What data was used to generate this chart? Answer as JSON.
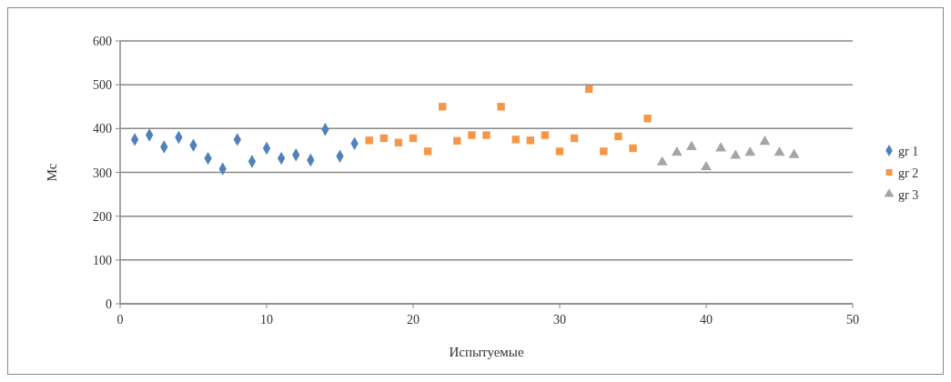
{
  "chart_data": {
    "type": "scatter",
    "xlabel": "Испытуемые",
    "ylabel": "Мс",
    "xlim": [
      0,
      50
    ],
    "xticks": [
      0,
      10,
      20,
      30,
      40,
      50
    ],
    "ylim": [
      0,
      600
    ],
    "yticks": [
      0,
      100,
      200,
      300,
      400,
      500,
      600
    ],
    "grid": "y",
    "legend": "right",
    "series": [
      {
        "name": "gr 1",
        "color": "#4f81bd",
        "marker": "diamond",
        "x": [
          1,
          2,
          3,
          4,
          5,
          6,
          7,
          8,
          9,
          10,
          11,
          12,
          13,
          14,
          15,
          16
        ],
        "values": [
          375,
          385,
          358,
          380,
          362,
          332,
          308,
          375,
          325,
          355,
          332,
          340,
          328,
          398,
          337,
          366
        ]
      },
      {
        "name": "gr 2",
        "color": "#f79646",
        "marker": "square",
        "x": [
          17,
          18,
          19,
          20,
          21,
          22,
          23,
          24,
          25,
          26,
          27,
          28,
          29,
          30,
          31,
          32,
          33,
          34,
          35,
          36
        ],
        "values": [
          373,
          378,
          368,
          378,
          348,
          450,
          372,
          385,
          385,
          450,
          375,
          373,
          385,
          348,
          378,
          490,
          348,
          382,
          355,
          423
        ]
      },
      {
        "name": "gr 3",
        "color": "#a5a5a5",
        "marker": "triangle",
        "x": [
          37,
          38,
          39,
          40,
          41,
          42,
          43,
          44,
          45,
          46
        ],
        "values": [
          323,
          345,
          358,
          312,
          355,
          338,
          345,
          370,
          345,
          340
        ]
      }
    ]
  }
}
